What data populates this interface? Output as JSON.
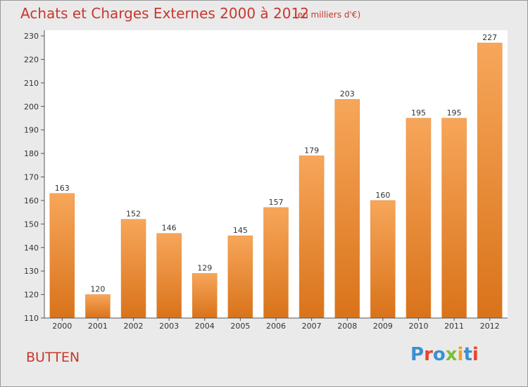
{
  "header": {
    "title": "Achats et Charges Externes 2000 à 2012",
    "unit": "(en milliers d'€)"
  },
  "footer": {
    "commune": "BUTTEN",
    "logo": [
      "P",
      "r",
      "o",
      "x",
      "i",
      "t",
      "i"
    ]
  },
  "colors": {
    "bar_top": "#f7a65a",
    "bar_bottom": "#d9731a",
    "title": "#c8372d",
    "background": "#eaeaea",
    "plot": "#ffffff"
  },
  "chart_data": {
    "type": "bar",
    "categories": [
      "2000",
      "2001",
      "2002",
      "2003",
      "2004",
      "2005",
      "2006",
      "2007",
      "2008",
      "2009",
      "2010",
      "2011",
      "2012"
    ],
    "values": [
      163,
      120,
      152,
      146,
      129,
      145,
      157,
      179,
      203,
      160,
      195,
      195,
      227
    ],
    "title": "Achats et Charges Externes 2000 à 2012",
    "xlabel": "",
    "ylabel": "",
    "ylim": [
      110,
      230
    ],
    "yticks": [
      110,
      120,
      130,
      140,
      150,
      160,
      170,
      180,
      190,
      200,
      210,
      220,
      230
    ],
    "grid": false,
    "data_labels": true
  }
}
